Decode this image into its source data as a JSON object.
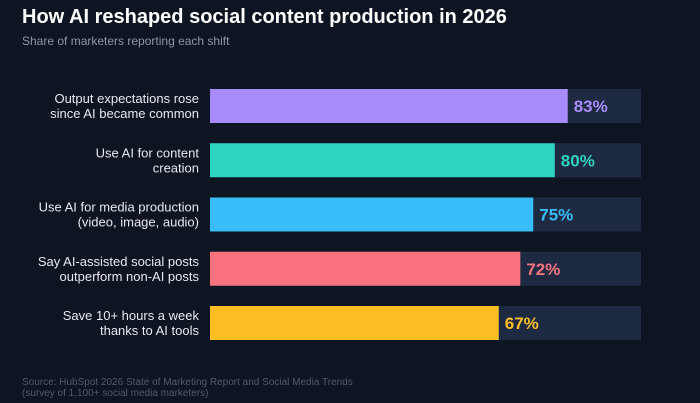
{
  "header": {
    "title": "How AI reshaped social content production in 2026",
    "subtitle": "Share of marketers reporting each shift"
  },
  "footer": {
    "source_line1": "Source: HubSpot 2026 State of Marketing Report and Social Media Trends",
    "source_line2": "(survey of 1,100+ social media marketers)"
  },
  "colors": {
    "background": "#0d1422",
    "track": "#1e2a42"
  },
  "chart_data": {
    "type": "bar",
    "orientation": "horizontal",
    "title": "How AI reshaped social content production in 2026",
    "subtitle": "Share of marketers reporting each shift",
    "xlim": [
      0,
      100
    ],
    "unit": "%",
    "grid": false,
    "legend": "none",
    "categories": [
      [
        "Output expectations rose",
        "since AI became common"
      ],
      [
        "Use AI for content",
        "creation"
      ],
      [
        "Use AI for media production",
        "(video, image, audio)"
      ],
      [
        "Say AI-assisted social posts",
        "outperform non-AI posts"
      ],
      [
        "Save 10+ hours a week",
        "thanks to AI tools"
      ]
    ],
    "values": [
      83,
      80,
      75,
      72,
      67
    ],
    "value_labels": [
      "83%",
      "80%",
      "75%",
      "72%",
      "67%"
    ],
    "bar_colors": [
      "#a78bfa",
      "#2dd4bf",
      "#38bdf8",
      "#f8727f",
      "#fbbf24"
    ]
  }
}
